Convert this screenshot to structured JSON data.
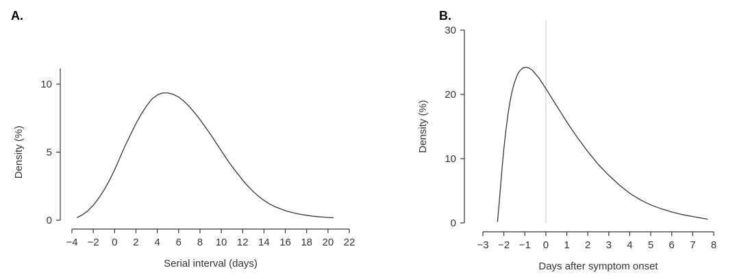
{
  "panels": [
    {
      "label": "A."
    },
    {
      "label": "B."
    }
  ],
  "chart_data": [
    {
      "type": "line",
      "xlabel": "Serial interval (days)",
      "ylabel": "Density (%)",
      "xlim": [
        -4,
        22
      ],
      "ylim": [
        0,
        10
      ],
      "xticks": [
        -4,
        -2,
        0,
        2,
        4,
        6,
        8,
        10,
        12,
        14,
        16,
        18,
        20,
        22
      ],
      "xtick_labels": [
        "−4",
        "−2",
        "0",
        "2",
        "4",
        "6",
        "8",
        "10",
        "12",
        "14",
        "16",
        "18",
        "20",
        "22"
      ],
      "yticks": [
        0,
        5,
        10
      ],
      "ytick_labels": [
        "0",
        "5",
        "10"
      ],
      "grid": false,
      "color": "#333333",
      "series": [
        {
          "x": [
            -3.5,
            -3,
            -2.5,
            -2,
            -1.5,
            -1,
            -0.5,
            0,
            0.5,
            1,
            1.5,
            2,
            2.5,
            3,
            3.5,
            4,
            4.5,
            5,
            5.5,
            6,
            6.5,
            7,
            7.5,
            8,
            8.5,
            9,
            9.5,
            10,
            10.5,
            11,
            11.5,
            12,
            12.5,
            13,
            13.5,
            14,
            14.5,
            15,
            15.5,
            16,
            16.5,
            17,
            17.5,
            18,
            18.5,
            19,
            19.5,
            20,
            20.5
          ],
          "y": [
            0.2,
            0.4,
            0.7,
            1.1,
            1.6,
            2.2,
            2.9,
            3.7,
            4.6,
            5.5,
            6.3,
            7.1,
            7.8,
            8.4,
            8.9,
            9.2,
            9.35,
            9.35,
            9.25,
            9.05,
            8.75,
            8.35,
            7.9,
            7.4,
            6.85,
            6.3,
            5.7,
            5.1,
            4.5,
            3.95,
            3.45,
            2.95,
            2.5,
            2.1,
            1.75,
            1.45,
            1.2,
            1.0,
            0.85,
            0.7,
            0.6,
            0.5,
            0.42,
            0.36,
            0.3,
            0.26,
            0.23,
            0.2,
            0.18
          ]
        }
      ]
    },
    {
      "type": "line",
      "xlabel": "Days after symptom onset",
      "ylabel": "Density (%)",
      "xlim": [
        -3,
        8
      ],
      "ylim": [
        0,
        30
      ],
      "xticks": [
        -3,
        -2,
        -1,
        0,
        1,
        2,
        3,
        4,
        5,
        6,
        7,
        8
      ],
      "xtick_labels": [
        "−3",
        "−2",
        "−1",
        "0",
        "1",
        "2",
        "3",
        "4",
        "5",
        "6",
        "7",
        "8"
      ],
      "yticks": [
        0,
        10,
        20,
        30
      ],
      "ytick_labels": [
        "0",
        "10",
        "20",
        "30"
      ],
      "vline_x": 0,
      "grid": false,
      "color": "#333333",
      "series": [
        {
          "x": [
            -2.3,
            -2.2,
            -2.1,
            -2.0,
            -1.9,
            -1.8,
            -1.7,
            -1.6,
            -1.5,
            -1.4,
            -1.3,
            -1.2,
            -1.1,
            -1.0,
            -0.9,
            -0.8,
            -0.7,
            -0.6,
            -0.5,
            -0.4,
            -0.3,
            -0.2,
            -0.1,
            0,
            0.25,
            0.5,
            0.75,
            1.0,
            1.25,
            1.5,
            1.75,
            2.0,
            2.5,
            3.0,
            3.5,
            4.0,
            4.5,
            5.0,
            5.5,
            6.0,
            6.5,
            7.0,
            7.5,
            7.7
          ],
          "y": [
            0.2,
            4,
            8,
            11.5,
            14.5,
            17,
            19,
            20.6,
            21.8,
            22.7,
            23.4,
            23.8,
            24.1,
            24.2,
            24.2,
            24.1,
            23.9,
            23.6,
            23.2,
            22.8,
            22.4,
            21.9,
            21.4,
            20.9,
            19.6,
            18.3,
            17.0,
            15.7,
            14.5,
            13.3,
            12.2,
            11.1,
            9.1,
            7.4,
            5.9,
            4.6,
            3.6,
            2.8,
            2.2,
            1.7,
            1.3,
            1.0,
            0.7,
            0.6
          ]
        }
      ]
    }
  ]
}
